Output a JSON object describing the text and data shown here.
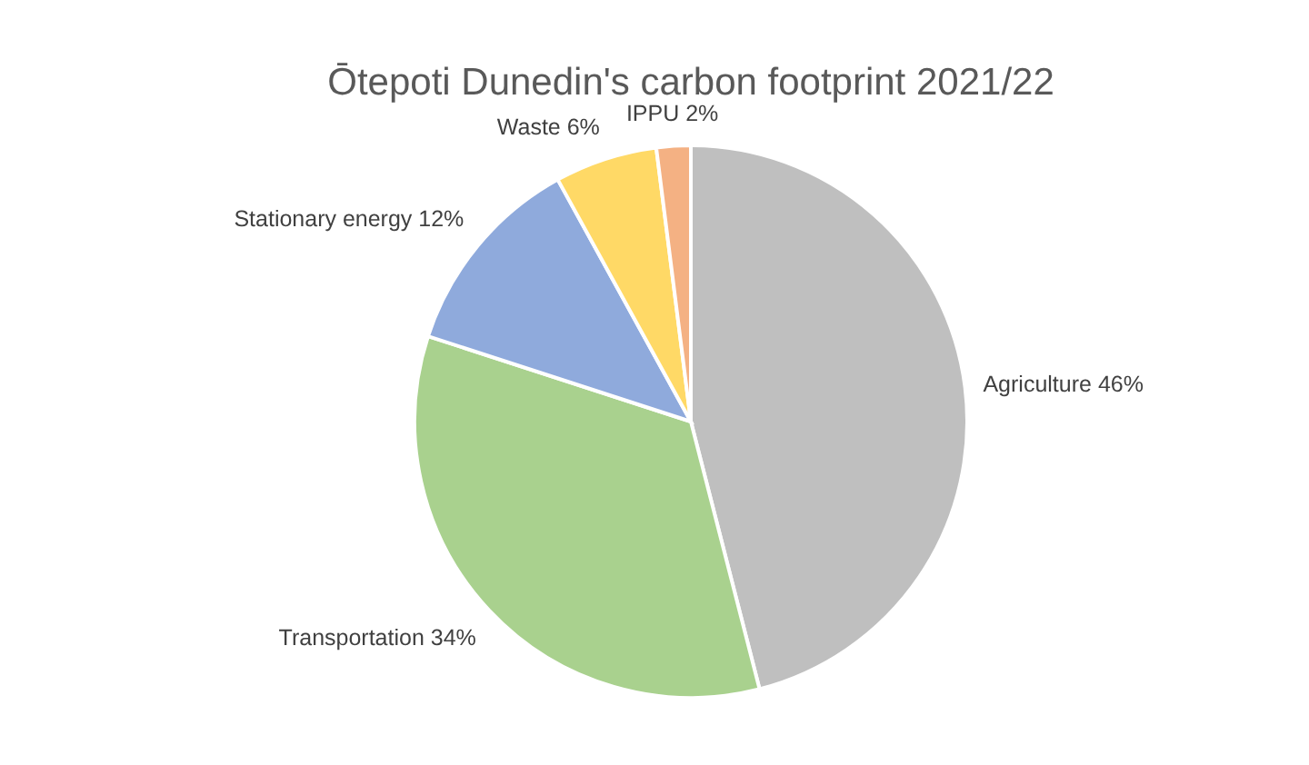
{
  "chart_data": {
    "type": "pie",
    "title": "Ōtepoti Dunedin's carbon footprint 2021/22",
    "categories": [
      "Agriculture",
      "Transportation",
      "Stationary energy",
      "Waste",
      "IPPU"
    ],
    "values": [
      46,
      34,
      12,
      6,
      2
    ],
    "colors": [
      "#bfbfbf",
      "#a9d18e",
      "#8faadc",
      "#ffd966",
      "#f4b183"
    ],
    "value_labels": [
      "46%",
      "34%",
      "12%",
      "6%",
      "2%"
    ]
  }
}
